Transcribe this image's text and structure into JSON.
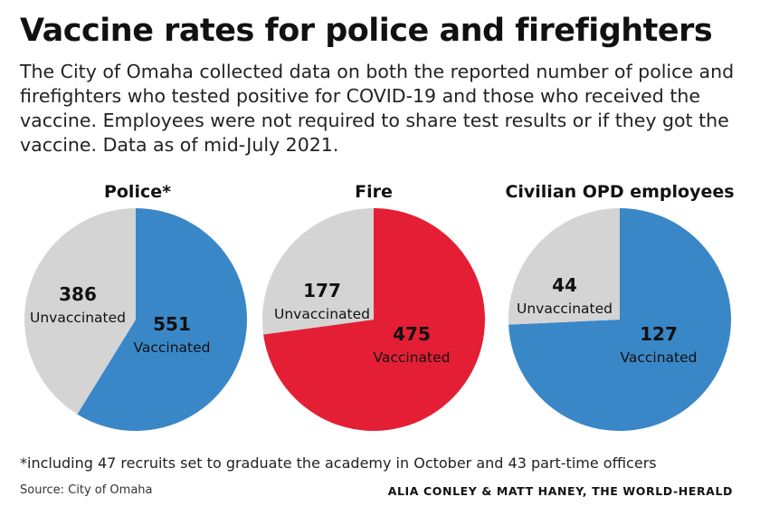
{
  "header": {
    "title": "Vaccine rates for police and firefighters",
    "subtitle": "The City of Omaha collected data on both the reported number of police and firefighters who tested positive for COVID-19 and those who received the vaccine. Employees were not required to share test results or if they got the vaccine. Data as of mid-July 2021."
  },
  "chart_data": [
    {
      "type": "pie",
      "title": "Police*",
      "slices": [
        {
          "label": "Vaccinated",
          "value": 551,
          "color": "#3a87c8"
        },
        {
          "label": "Unvaccinated",
          "value": 386,
          "color": "#d4d4d4"
        }
      ]
    },
    {
      "type": "pie",
      "title": "Fire",
      "slices": [
        {
          "label": "Vaccinated",
          "value": 475,
          "color": "#e41f35"
        },
        {
          "label": "Unvaccinated",
          "value": 177,
          "color": "#d4d4d4"
        }
      ]
    },
    {
      "type": "pie",
      "title": "Civilian OPD employees",
      "slices": [
        {
          "label": "Vaccinated",
          "value": 127,
          "color": "#3a87c8"
        },
        {
          "label": "Unvaccinated",
          "value": 44,
          "color": "#d4d4d4"
        }
      ]
    }
  ],
  "footer": {
    "footnote": "*including 47 recruits set to graduate the academy in October and 43 part-time officers",
    "source": "Source: City of Omaha",
    "credit": "ALIA CONLEY & MATT HANEY, THE WORLD-HERALD"
  }
}
